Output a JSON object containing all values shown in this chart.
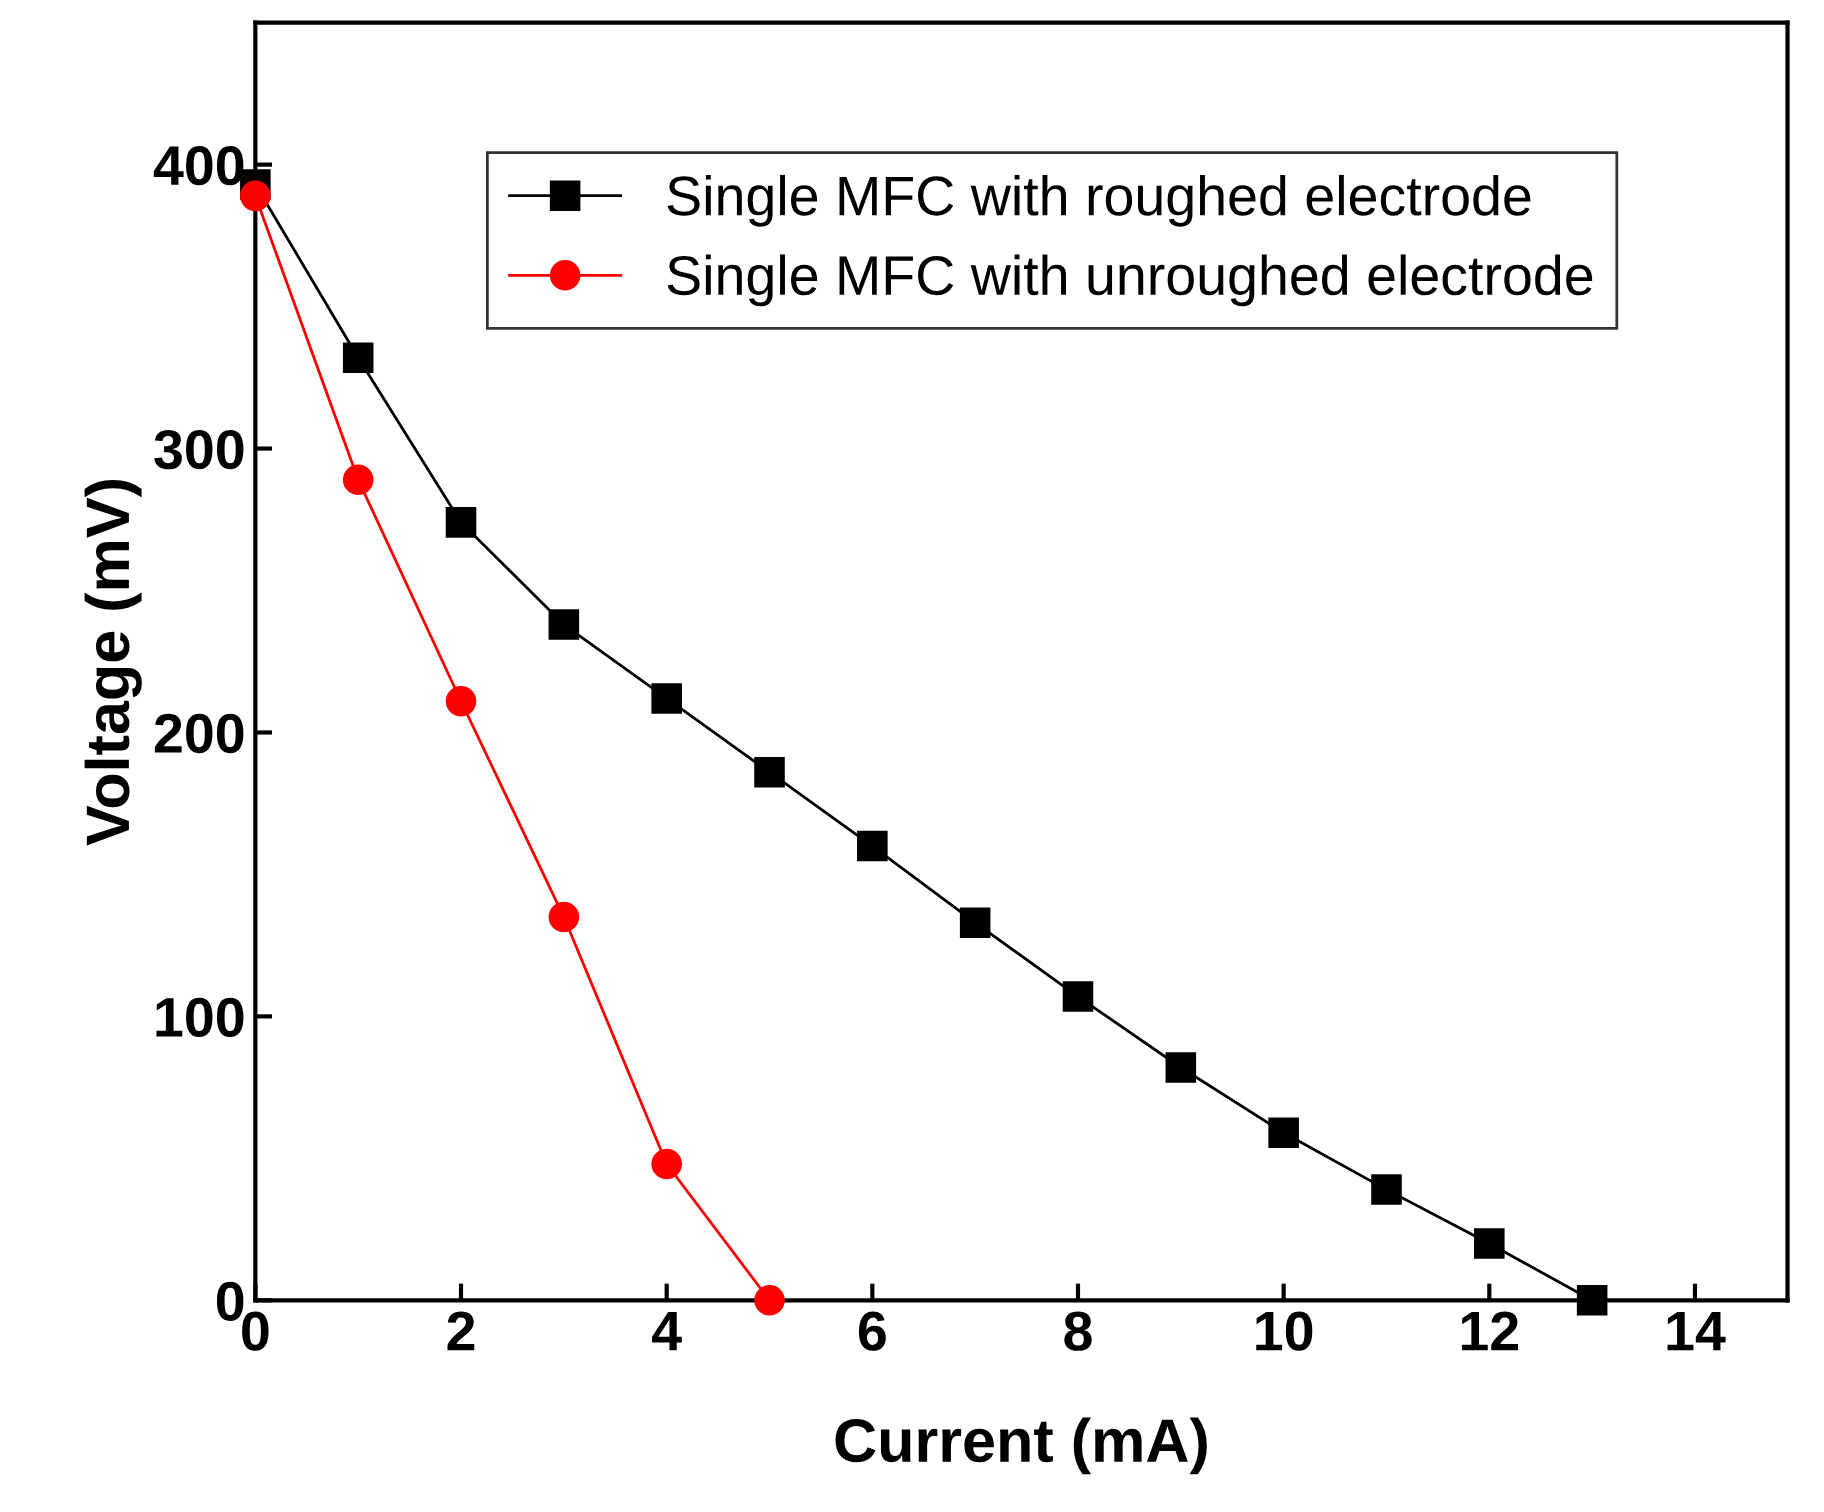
{
  "chart_data": {
    "type": "line",
    "xlabel": "Current (mA)",
    "ylabel": "Voltage (mV)",
    "xlim": [
      0,
      14.9
    ],
    "xticks": [
      0,
      2,
      4,
      6,
      8,
      10,
      12,
      14
    ],
    "ylim": [
      0,
      450
    ],
    "yticks": [
      0,
      100,
      200,
      300,
      400
    ],
    "legend": "top",
    "line_style": "solid",
    "grid": false,
    "series": [
      {
        "name": "Single MFC with roughed electrode",
        "color": "#000000",
        "marker": "square",
        "x": [
          0,
          1,
          2,
          3,
          4,
          5,
          6,
          7,
          8,
          9,
          10,
          11,
          12,
          13
        ],
        "values": [
          393,
          332,
          274,
          238,
          212,
          186,
          160,
          133,
          107,
          82,
          59,
          39,
          20,
          0
        ]
      },
      {
        "name": "Single MFC with unroughed electrode",
        "color": "#ff0000",
        "marker": "circle",
        "x": [
          0,
          1,
          2,
          3,
          4,
          5
        ],
        "values": [
          389,
          289,
          211,
          135,
          48,
          0
        ]
      }
    ]
  }
}
